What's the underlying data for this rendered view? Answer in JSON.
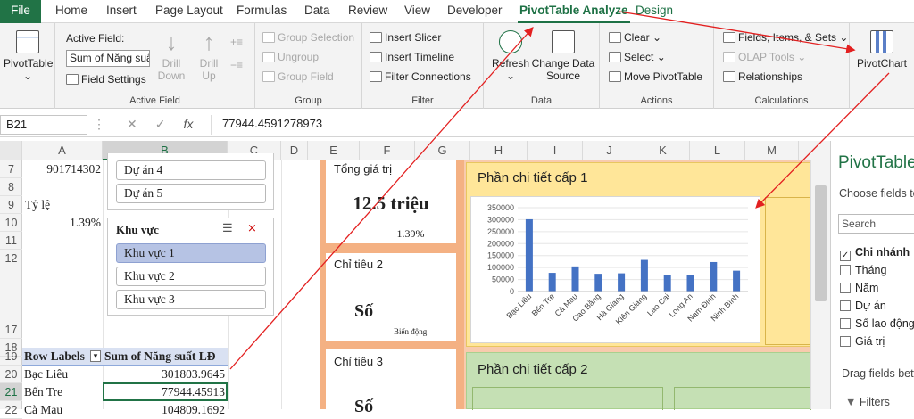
{
  "ribbon_tabs": [
    "File",
    "Home",
    "Insert",
    "Page Layout",
    "Formulas",
    "Data",
    "Review",
    "View",
    "Developer",
    "PivotTable Analyze",
    "Design"
  ],
  "ribbon": {
    "pivottable_label": "PivotTable",
    "active_field_label": "Active Field:",
    "active_field_value": "Sum of Năng suất",
    "field_settings": "Field Settings",
    "drill_down": "Drill\nDown",
    "drill_up": "Drill\nUp",
    "group_active_field": "Active Field",
    "group_selection": "Group Selection",
    "ungroup": "Ungroup",
    "group_field": "Group Field",
    "group_group": "Group",
    "insert_slicer": "Insert Slicer",
    "insert_timeline": "Insert Timeline",
    "filter_connections": "Filter Connections",
    "group_filter": "Filter",
    "refresh": "Refresh",
    "change_data_source": "Change Data\nSource",
    "group_data": "Data",
    "clear": "Clear",
    "select": "Select",
    "move_pivottable": "Move PivotTable",
    "group_actions": "Actions",
    "fields_items_sets": "Fields, Items, & Sets",
    "olap_tools": "OLAP Tools",
    "relationships": "Relationships",
    "group_calculations": "Calculations",
    "pivotchart": "PivotChart"
  },
  "formula_bar": {
    "name_box": "B21",
    "fx": "fx",
    "value": "77944.4591278973"
  },
  "columns": [
    "A",
    "B",
    "C",
    "D",
    "E",
    "F",
    "G",
    "H",
    "I",
    "J",
    "K",
    "L",
    "M"
  ],
  "rows": [
    "7",
    "8",
    "9",
    "10",
    "11",
    "12",
    "17",
    "18",
    "19",
    "20",
    "21",
    "22"
  ],
  "cells": {
    "a7": "901714302",
    "a9": "Tỷ lệ",
    "a10": "1.39%",
    "pivot_header_labels": "Row Labels",
    "pivot_header_sum": "Sum of Năng suất LĐ",
    "pivot_rows": [
      {
        "label": "Bạc Liêu",
        "value": "301803.9645"
      },
      {
        "label": "Bến Tre",
        "value": "77944.45913"
      },
      {
        "label": "Cà Mau",
        "value": "104809.1692"
      }
    ]
  },
  "slicer_project": {
    "items": [
      "Dự án 4",
      "Dự án 5"
    ]
  },
  "slicer_region": {
    "title": "Khu vực",
    "items": [
      "Khu vực 1",
      "Khu vực 2",
      "Khu vực 3"
    ],
    "selected": 0
  },
  "dashboard": {
    "card1_title": "Tổng giá trị",
    "card1_value": "12.5 triệu",
    "card1_sub": "1.39%",
    "card2_title": "Chỉ tiêu 2",
    "card2_value": "Số",
    "card2_sub": "Biến động",
    "card3_title": "Chỉ tiêu 3",
    "card3_value": "Số",
    "panel1_title": "Phần chi tiết cấp 1",
    "panel2_title": "Phần chi tiết cấp 2"
  },
  "chart_data": {
    "type": "bar",
    "categories": [
      "Bạc Liêu",
      "Bến Tre",
      "Cà Mau",
      "Cao Bằng",
      "Hà Giang",
      "Kiên Giang",
      "Lào Cai",
      "Long An",
      "Nam Định",
      "Ninh Bình"
    ],
    "values": [
      301804,
      77944,
      104809,
      74000,
      76000,
      132000,
      69000,
      69000,
      123000,
      87000
    ],
    "ylim": [
      0,
      350000
    ],
    "yticks": [
      "0",
      "50000",
      "100000",
      "150000",
      "200000",
      "250000",
      "300000",
      "350000"
    ],
    "color": "#4472c4"
  },
  "pane": {
    "title": "PivotTable",
    "subtitle": "Choose fields to",
    "search": "Search",
    "fields": [
      {
        "name": "Chi nhánh",
        "checked": true
      },
      {
        "name": "Tháng",
        "checked": false
      },
      {
        "name": "Năm",
        "checked": false
      },
      {
        "name": "Dự án",
        "checked": false
      },
      {
        "name": "Số lao động",
        "checked": false
      },
      {
        "name": "Giá trị",
        "checked": false
      }
    ],
    "drag_text": "Drag fields betw",
    "filters": "Filters"
  },
  "colors": {
    "accent": "#1e7145",
    "file_tab": "#217346",
    "bar": "#4472c4",
    "orange_band": "#f4b183",
    "yellow_panel": "#ffe699",
    "green_panel": "#c5e0b4"
  }
}
